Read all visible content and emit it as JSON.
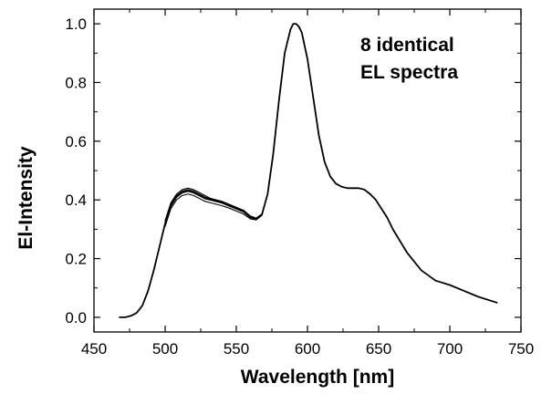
{
  "chart_data": {
    "type": "line",
    "xlabel": "Wavelength [nm]",
    "ylabel": "El-Intensity",
    "xlim": [
      450,
      750
    ],
    "ylim": [
      -0.05,
      1.05
    ],
    "xticks": [
      450,
      500,
      550,
      600,
      650,
      700,
      750
    ],
    "xtick_labels": [
      "450",
      "500",
      "550",
      "600",
      "650",
      "700",
      "750"
    ],
    "yticks": [
      0.0,
      0.2,
      0.4,
      0.6,
      0.8,
      1.0
    ],
    "ytick_labels": [
      "0.0",
      "0.2",
      "0.4",
      "0.6",
      "0.8",
      "1.0"
    ],
    "grid": false,
    "annotations": [
      {
        "text": [
          "8 identical",
          "EL spectra"
        ]
      }
    ],
    "series": [
      {
        "x": [
          468,
          472,
          476,
          480,
          484,
          488,
          492,
          496,
          500,
          504,
          508,
          512,
          516,
          520,
          524,
          528,
          532,
          536,
          540,
          545,
          550,
          555,
          560,
          564,
          568,
          572,
          576,
          580,
          584,
          588,
          590,
          592,
          594,
          596,
          600,
          604,
          608,
          612,
          616,
          620,
          624,
          628,
          632,
          636,
          640,
          644,
          648,
          652,
          656,
          660,
          665,
          670,
          675,
          680,
          690,
          700,
          710,
          720,
          733
        ],
        "values": [
          0.0,
          0.0,
          0.005,
          0.015,
          0.04,
          0.09,
          0.16,
          0.24,
          0.32,
          0.38,
          0.41,
          0.425,
          0.43,
          0.425,
          0.415,
          0.405,
          0.4,
          0.395,
          0.39,
          0.38,
          0.37,
          0.36,
          0.34,
          0.335,
          0.35,
          0.42,
          0.56,
          0.74,
          0.9,
          0.98,
          1.0,
          1.0,
          0.99,
          0.97,
          0.88,
          0.75,
          0.62,
          0.53,
          0.48,
          0.455,
          0.445,
          0.44,
          0.44,
          0.44,
          0.435,
          0.42,
          0.4,
          0.37,
          0.34,
          0.3,
          0.26,
          0.22,
          0.19,
          0.16,
          0.125,
          0.11,
          0.09,
          0.07,
          0.05
        ]
      },
      {
        "x": [
          500,
          504,
          508,
          512,
          516,
          520,
          524,
          528,
          532,
          536,
          540,
          545,
          550,
          555,
          560,
          564,
          568
        ],
        "values": [
          0.33,
          0.39,
          0.42,
          0.435,
          0.44,
          0.435,
          0.425,
          0.415,
          0.405,
          0.4,
          0.395,
          0.385,
          0.375,
          0.365,
          0.345,
          0.338,
          0.352
        ]
      },
      {
        "x": [
          500,
          504,
          508,
          512,
          516,
          520,
          524,
          528,
          532,
          536,
          540,
          545,
          550,
          555,
          560,
          564,
          568
        ],
        "values": [
          0.31,
          0.37,
          0.4,
          0.415,
          0.42,
          0.415,
          0.405,
          0.395,
          0.39,
          0.385,
          0.38,
          0.372,
          0.362,
          0.352,
          0.335,
          0.332,
          0.347
        ]
      },
      {
        "x": [
          500,
          504,
          508,
          512,
          516,
          520,
          524,
          528,
          532,
          536,
          540,
          545,
          550,
          555,
          560,
          564,
          568
        ],
        "values": [
          0.325,
          0.385,
          0.415,
          0.43,
          0.435,
          0.43,
          0.42,
          0.41,
          0.403,
          0.398,
          0.392,
          0.383,
          0.372,
          0.362,
          0.342,
          0.336,
          0.35
        ]
      }
    ]
  }
}
